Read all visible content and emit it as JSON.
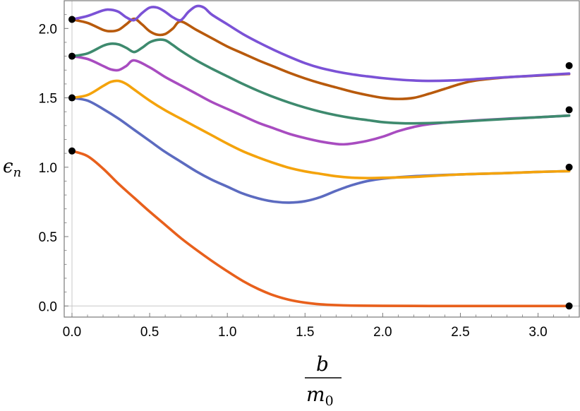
{
  "chart_data": {
    "type": "line",
    "title": "",
    "ylabel_symbol": "ϵ",
    "ylabel_subscript": "n",
    "xlabel_numerator": "b",
    "xlabel_denominator_symbol": "m",
    "xlabel_denominator_subscript": "0",
    "xlim": [
      -0.05,
      3.27
    ],
    "ylim": [
      -0.08,
      2.2
    ],
    "xticks": [
      0.0,
      0.5,
      1.0,
      1.5,
      2.0,
      2.5,
      3.0
    ],
    "xtick_labels": [
      "0.0",
      "0.5",
      "1.0",
      "1.5",
      "2.0",
      "2.5",
      "3.0"
    ],
    "yticks": [
      0.0,
      0.5,
      1.0,
      1.5,
      2.0
    ],
    "ytick_labels": [
      "0.0",
      "0.5",
      "1.0",
      "1.5",
      "2.0"
    ],
    "grid": false,
    "series": [
      {
        "color": "#e8601c",
        "points": [
          [
            0.0,
            1.117
          ],
          [
            0.1,
            1.08
          ],
          [
            0.2,
            0.99
          ],
          [
            0.3,
            0.88
          ],
          [
            0.4,
            0.78
          ],
          [
            0.5,
            0.68
          ],
          [
            0.6,
            0.585
          ],
          [
            0.7,
            0.49
          ],
          [
            0.8,
            0.405
          ],
          [
            0.9,
            0.325
          ],
          [
            1.0,
            0.25
          ],
          [
            1.1,
            0.18
          ],
          [
            1.2,
            0.122
          ],
          [
            1.3,
            0.076
          ],
          [
            1.4,
            0.044
          ],
          [
            1.5,
            0.024
          ],
          [
            1.6,
            0.012
          ],
          [
            1.7,
            0.006
          ],
          [
            1.8,
            0.003
          ],
          [
            2.0,
            0.001
          ],
          [
            2.3,
            0.0
          ],
          [
            2.6,
            0.0
          ],
          [
            3.0,
            0.0
          ],
          [
            3.2,
            0.0
          ]
        ]
      },
      {
        "color": "#5c6bc0",
        "points": [
          [
            0.0,
            1.5
          ],
          [
            0.1,
            1.48
          ],
          [
            0.2,
            1.42
          ],
          [
            0.3,
            1.35
          ],
          [
            0.4,
            1.27
          ],
          [
            0.5,
            1.19
          ],
          [
            0.6,
            1.11
          ],
          [
            0.7,
            1.04
          ],
          [
            0.8,
            0.97
          ],
          [
            0.9,
            0.91
          ],
          [
            1.0,
            0.86
          ],
          [
            1.1,
            0.81
          ],
          [
            1.2,
            0.775
          ],
          [
            1.3,
            0.752
          ],
          [
            1.4,
            0.745
          ],
          [
            1.5,
            0.755
          ],
          [
            1.6,
            0.785
          ],
          [
            1.7,
            0.83
          ],
          [
            1.8,
            0.87
          ],
          [
            1.9,
            0.9
          ],
          [
            2.0,
            0.918
          ],
          [
            2.2,
            0.935
          ],
          [
            2.5,
            0.948
          ],
          [
            2.8,
            0.958
          ],
          [
            3.0,
            0.966
          ],
          [
            3.2,
            0.972
          ]
        ]
      },
      {
        "color": "#f4a30c",
        "points": [
          [
            0.0,
            1.5
          ],
          [
            0.1,
            1.52
          ],
          [
            0.2,
            1.585
          ],
          [
            0.25,
            1.615
          ],
          [
            0.3,
            1.622
          ],
          [
            0.35,
            1.6
          ],
          [
            0.4,
            1.56
          ],
          [
            0.5,
            1.48
          ],
          [
            0.6,
            1.41
          ],
          [
            0.7,
            1.35
          ],
          [
            0.8,
            1.29
          ],
          [
            0.9,
            1.23
          ],
          [
            1.0,
            1.17
          ],
          [
            1.1,
            1.115
          ],
          [
            1.2,
            1.07
          ],
          [
            1.3,
            1.03
          ],
          [
            1.4,
            0.995
          ],
          [
            1.5,
            0.97
          ],
          [
            1.6,
            0.952
          ],
          [
            1.7,
            0.935
          ],
          [
            1.8,
            0.925
          ],
          [
            1.9,
            0.922
          ],
          [
            2.0,
            0.924
          ],
          [
            2.2,
            0.93
          ],
          [
            2.5,
            0.948
          ],
          [
            2.8,
            0.958
          ],
          [
            3.0,
            0.966
          ],
          [
            3.2,
            0.972
          ]
        ]
      },
      {
        "color": "#a84cc0",
        "points": [
          [
            0.0,
            1.8
          ],
          [
            0.1,
            1.78
          ],
          [
            0.2,
            1.73
          ],
          [
            0.25,
            1.705
          ],
          [
            0.3,
            1.7
          ],
          [
            0.35,
            1.73
          ],
          [
            0.4,
            1.77
          ],
          [
            0.5,
            1.72
          ],
          [
            0.6,
            1.65
          ],
          [
            0.7,
            1.59
          ],
          [
            0.8,
            1.53
          ],
          [
            0.9,
            1.47
          ],
          [
            1.0,
            1.42
          ],
          [
            1.1,
            1.37
          ],
          [
            1.2,
            1.32
          ],
          [
            1.3,
            1.28
          ],
          [
            1.4,
            1.24
          ],
          [
            1.5,
            1.21
          ],
          [
            1.6,
            1.185
          ],
          [
            1.7,
            1.168
          ],
          [
            1.75,
            1.165
          ],
          [
            1.8,
            1.17
          ],
          [
            1.9,
            1.19
          ],
          [
            2.0,
            1.22
          ],
          [
            2.1,
            1.26
          ],
          [
            2.2,
            1.29
          ],
          [
            2.3,
            1.31
          ],
          [
            2.5,
            1.33
          ],
          [
            2.8,
            1.35
          ],
          [
            3.0,
            1.36
          ],
          [
            3.2,
            1.372
          ]
        ]
      },
      {
        "color": "#3e8a6e",
        "points": [
          [
            0.0,
            1.8
          ],
          [
            0.1,
            1.82
          ],
          [
            0.2,
            1.875
          ],
          [
            0.25,
            1.89
          ],
          [
            0.3,
            1.885
          ],
          [
            0.35,
            1.86
          ],
          [
            0.4,
            1.83
          ],
          [
            0.45,
            1.86
          ],
          [
            0.5,
            1.9
          ],
          [
            0.55,
            1.918
          ],
          [
            0.6,
            1.915
          ],
          [
            0.65,
            1.88
          ],
          [
            0.7,
            1.84
          ],
          [
            0.8,
            1.77
          ],
          [
            0.9,
            1.71
          ],
          [
            1.0,
            1.655
          ],
          [
            1.1,
            1.6
          ],
          [
            1.2,
            1.55
          ],
          [
            1.3,
            1.505
          ],
          [
            1.4,
            1.465
          ],
          [
            1.5,
            1.43
          ],
          [
            1.6,
            1.4
          ],
          [
            1.7,
            1.375
          ],
          [
            1.8,
            1.355
          ],
          [
            1.9,
            1.34
          ],
          [
            2.0,
            1.325
          ],
          [
            2.1,
            1.318
          ],
          [
            2.2,
            1.316
          ],
          [
            2.4,
            1.322
          ],
          [
            2.6,
            1.335
          ],
          [
            2.8,
            1.348
          ],
          [
            3.0,
            1.36
          ],
          [
            3.2,
            1.372
          ]
        ]
      },
      {
        "color": "#b85a0c",
        "points": [
          [
            0.0,
            2.065
          ],
          [
            0.1,
            2.04
          ],
          [
            0.2,
            1.99
          ],
          [
            0.25,
            1.98
          ],
          [
            0.3,
            1.99
          ],
          [
            0.35,
            2.03
          ],
          [
            0.4,
            2.07
          ],
          [
            0.45,
            2.03
          ],
          [
            0.5,
            1.98
          ],
          [
            0.55,
            1.955
          ],
          [
            0.6,
            1.96
          ],
          [
            0.65,
            2.0
          ],
          [
            0.7,
            2.05
          ],
          [
            0.8,
            1.99
          ],
          [
            0.9,
            1.93
          ],
          [
            1.0,
            1.87
          ],
          [
            1.1,
            1.82
          ],
          [
            1.2,
            1.77
          ],
          [
            1.3,
            1.725
          ],
          [
            1.4,
            1.68
          ],
          [
            1.5,
            1.64
          ],
          [
            1.6,
            1.605
          ],
          [
            1.7,
            1.575
          ],
          [
            1.8,
            1.545
          ],
          [
            1.9,
            1.52
          ],
          [
            2.0,
            1.5
          ],
          [
            2.1,
            1.492
          ],
          [
            2.2,
            1.5
          ],
          [
            2.3,
            1.53
          ],
          [
            2.4,
            1.565
          ],
          [
            2.5,
            1.6
          ],
          [
            2.6,
            1.625
          ],
          [
            2.8,
            1.648
          ],
          [
            3.0,
            1.66
          ],
          [
            3.2,
            1.672
          ]
        ]
      },
      {
        "color": "#7b52d6",
        "points": [
          [
            0.0,
            2.065
          ],
          [
            0.1,
            2.09
          ],
          [
            0.2,
            2.13
          ],
          [
            0.25,
            2.135
          ],
          [
            0.3,
            2.12
          ],
          [
            0.35,
            2.08
          ],
          [
            0.4,
            2.06
          ],
          [
            0.45,
            2.11
          ],
          [
            0.5,
            2.15
          ],
          [
            0.55,
            2.15
          ],
          [
            0.6,
            2.12
          ],
          [
            0.65,
            2.08
          ],
          [
            0.7,
            2.06
          ],
          [
            0.75,
            2.12
          ],
          [
            0.8,
            2.16
          ],
          [
            0.85,
            2.15
          ],
          [
            0.9,
            2.1
          ],
          [
            1.0,
            2.03
          ],
          [
            1.1,
            1.96
          ],
          [
            1.2,
            1.9
          ],
          [
            1.3,
            1.845
          ],
          [
            1.4,
            1.795
          ],
          [
            1.5,
            1.75
          ],
          [
            1.6,
            1.715
          ],
          [
            1.7,
            1.69
          ],
          [
            1.8,
            1.67
          ],
          [
            1.9,
            1.655
          ],
          [
            2.0,
            1.642
          ],
          [
            2.1,
            1.632
          ],
          [
            2.2,
            1.625
          ],
          [
            2.3,
            1.622
          ],
          [
            2.5,
            1.628
          ],
          [
            2.7,
            1.642
          ],
          [
            2.9,
            1.655
          ],
          [
            3.0,
            1.662
          ],
          [
            3.2,
            1.675
          ]
        ]
      }
    ],
    "markers_left": [
      [
        0.0,
        1.117
      ],
      [
        0.0,
        1.5
      ],
      [
        0.0,
        1.8
      ],
      [
        0.0,
        2.065
      ]
    ],
    "markers_right": [
      [
        3.2,
        0.0
      ],
      [
        3.2,
        1.0
      ],
      [
        3.2,
        1.414
      ],
      [
        3.2,
        1.732
      ]
    ],
    "marker_color": "#000000",
    "frame_color": "#7a7a7a",
    "zero_line_color": "#c8c8c8"
  }
}
